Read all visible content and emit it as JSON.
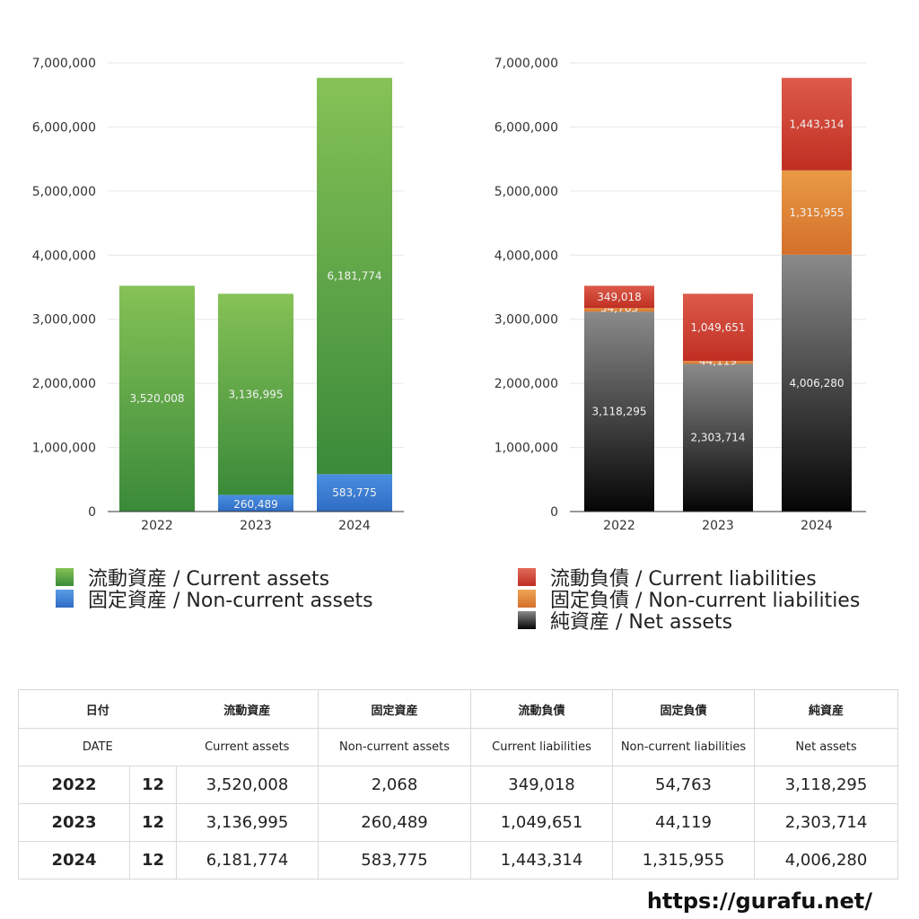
{
  "chart_data": [
    {
      "type": "bar",
      "stacked": true,
      "categories": [
        "2022",
        "2023",
        "2024"
      ],
      "ylim": [
        0,
        7000000
      ],
      "yticks": [
        "0",
        "1,000,000",
        "2,000,000",
        "3,000,000",
        "4,000,000",
        "5,000,000",
        "6,000,000",
        "7,000,000"
      ],
      "yticks_values": [
        0,
        1000000,
        2000000,
        3000000,
        4000000,
        5000000,
        6000000,
        7000000
      ],
      "grid": true,
      "series": [
        {
          "name": "固定資産 / Non-current assets",
          "values": [
            2068,
            260489,
            583775
          ],
          "labels": [
            "2,068",
            "260,489",
            "583,775"
          ],
          "color": "#4a8fe0",
          "color_dark": "#2f6cc4"
        },
        {
          "name": "流動資産 / Current assets",
          "values": [
            3520008,
            3136995,
            6181774
          ],
          "labels": [
            "3,520,008",
            "3,136,995",
            "6,181,774"
          ],
          "color": "#86c256",
          "color_dark": "#3a8a3a"
        }
      ]
    },
    {
      "type": "bar",
      "stacked": true,
      "categories": [
        "2022",
        "2023",
        "2024"
      ],
      "ylim": [
        0,
        7000000
      ],
      "yticks": [
        "0",
        "1,000,000",
        "2,000,000",
        "3,000,000",
        "4,000,000",
        "5,000,000",
        "6,000,000",
        "7,000,000"
      ],
      "yticks_values": [
        0,
        1000000,
        2000000,
        3000000,
        4000000,
        5000000,
        6000000,
        7000000
      ],
      "grid": true,
      "series": [
        {
          "name": "純資産 / Net assets",
          "values": [
            3118295,
            2303714,
            4006280
          ],
          "labels": [
            "3,118,295",
            "2,303,714",
            "4,006,280"
          ],
          "color": "#8a8a8a",
          "color_dark": "#050505"
        },
        {
          "name": "固定負債 / Non-current liabilities",
          "values": [
            54763,
            44119,
            1315955
          ],
          "labels": [
            "54,763",
            "44,119",
            "1,315,955"
          ],
          "color": "#e99a45",
          "color_dark": "#d4702a"
        },
        {
          "name": "流動負債 / Current liabilities",
          "values": [
            349018,
            1049651,
            1443314
          ],
          "labels": [
            "349,018",
            "1,049,651",
            "1,443,314"
          ],
          "color": "#dd5a4a",
          "color_dark": "#bf2f22"
        }
      ]
    }
  ],
  "legend_left": [
    {
      "label": "流動資産 / Current assets",
      "color": "#5aa648"
    },
    {
      "label": "固定資産 / Non-current assets",
      "color": "#3a7ad6"
    }
  ],
  "legend_right": [
    {
      "label": "流動負債 / Current liabilities",
      "color": "#d33c2e"
    },
    {
      "label": "固定負債 / Non-current liabilities",
      "color": "#e5883a"
    },
    {
      "label": "純資産 / Net assets",
      "color": "#333333"
    }
  ],
  "table": {
    "header_ja": [
      "日付",
      "流動資産",
      "固定資産",
      "流動負債",
      "固定負債",
      "純資産"
    ],
    "header_en": [
      "DATE",
      "Current assets",
      "Non-current assets",
      "Current liabilities",
      "Non-current liabilities",
      "Net assets"
    ],
    "rows": [
      {
        "year": "2022",
        "month": "12",
        "cells": [
          "3,520,008",
          "2,068",
          "349,018",
          "54,763",
          "3,118,295"
        ]
      },
      {
        "year": "2023",
        "month": "12",
        "cells": [
          "3,136,995",
          "260,489",
          "1,049,651",
          "44,119",
          "2,303,714"
        ]
      },
      {
        "year": "2024",
        "month": "12",
        "cells": [
          "6,181,774",
          "583,775",
          "1,443,314",
          "1,315,955",
          "4,006,280"
        ]
      }
    ]
  },
  "source": "https://gurafu.net/"
}
